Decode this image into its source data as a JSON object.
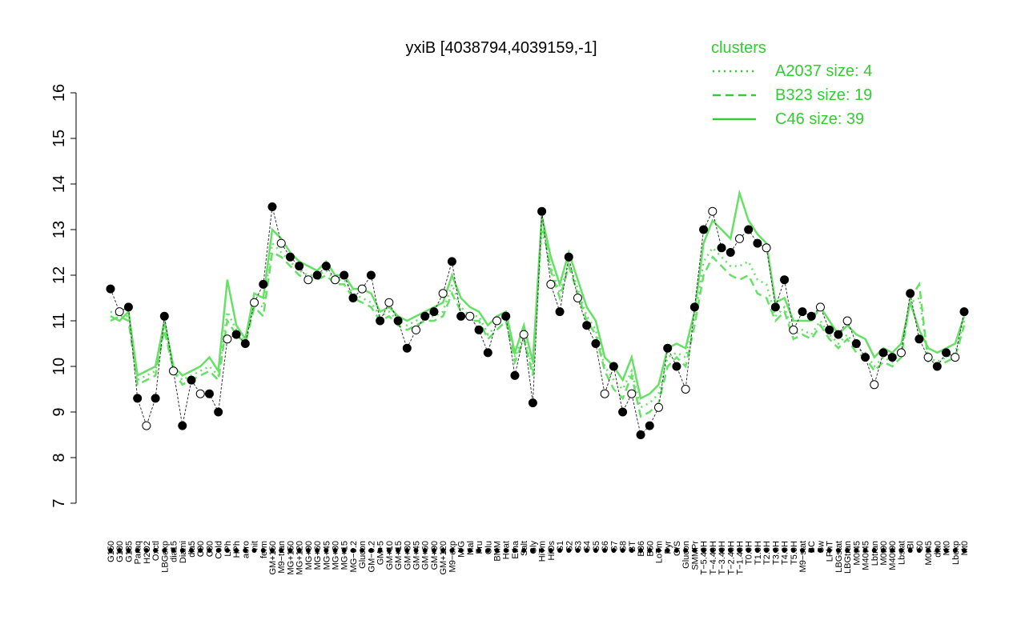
{
  "chart_data": {
    "type": "line",
    "title": "yxiB [4038794,4039159,-1]",
    "xlabel": "",
    "ylabel": "",
    "ylim": [
      7,
      16
    ],
    "yticks": [
      7,
      8,
      9,
      10,
      11,
      12,
      13,
      14,
      15,
      16
    ],
    "grid": false,
    "legend": {
      "title": "clusters",
      "placement": "top-right",
      "entries": [
        {
          "label": "A2037 size: 4",
          "style": "dotted"
        },
        {
          "label": "B323 size: 19",
          "style": "dashed"
        },
        {
          "label": "C46 size: 39",
          "style": "solid"
        }
      ]
    },
    "x_tick_labels": [
      "G150",
      "G180",
      "G135",
      "Paraq",
      "H2O2",
      "Oxctl",
      "LBGexp",
      "dia15",
      "Diami",
      "dia5",
      "C90",
      "C30",
      "Cold",
      "LPh",
      "HPh",
      "aero",
      "nit",
      "ferm",
      "GM+150",
      "M9−tran",
      "MG+150",
      "MG+120",
      "MG+90",
      "MG+60",
      "MG+45",
      "MG+30",
      "MG+15",
      "MG−0.2",
      "Glucon",
      "GM−0.2",
      "GM+5",
      "GM+10",
      "GM+15",
      "GM+30",
      "GM+45",
      "GM+60",
      "GM+90",
      "GM+120",
      "M9−exp",
      "M/G",
      "Mal",
      "Fru",
      "Glu",
      "BMM",
      "Heat",
      "Etha",
      "Salt",
      "Gly",
      "HiTm",
      "HiOs",
      "S1",
      "S2",
      "S3",
      "S4",
      "S5",
      "S6",
      "S7",
      "S8",
      "BT",
      "B36",
      "B60",
      "LoTm",
      "Pyr",
      "G/S",
      "Glucon",
      "SMMPr",
      "T−5.40H",
      "T−4.40H",
      "T−3.40H",
      "T−2.40H",
      "T−1.40H",
      "T0.0H",
      "T1.0H",
      "T2.0H",
      "T3.0H",
      "T4.0H",
      "T5.0H",
      "M9−stat",
      "BC",
      "Sw",
      "LPhT",
      "LBGstat",
      "LBGtran",
      "M0t45",
      "M40t45",
      "Lbtran",
      "M0t90",
      "M40t90",
      "Lbstat",
      "BI",
      "S0",
      "M0t45",
      "dia0",
      "Mt0",
      "Lbexp",
      "Mt0"
    ],
    "series": [
      {
        "style": "points-line",
        "color": "#000000",
        "x": [
          1,
          2,
          3,
          4,
          5,
          6,
          7,
          8,
          9,
          10,
          11,
          12,
          13,
          14,
          15,
          16,
          17,
          18,
          19,
          20,
          21,
          22,
          23,
          24,
          25,
          26,
          27,
          28,
          29,
          30,
          31,
          32,
          33,
          34,
          35,
          36,
          37,
          38,
          39,
          40,
          41,
          42,
          43,
          44,
          45,
          46,
          47,
          48,
          49,
          50,
          51,
          52,
          53,
          54,
          55,
          56,
          57,
          58,
          59,
          60,
          61,
          62,
          63,
          64,
          65,
          66,
          67,
          68,
          69,
          70,
          71,
          72,
          73,
          74,
          75,
          76,
          77,
          78,
          79,
          80,
          81,
          82,
          83,
          84,
          85,
          86,
          87,
          88,
          89,
          90,
          91,
          92,
          93,
          94,
          95,
          96
        ],
        "values": [
          11.7,
          11.2,
          11.3,
          9.3,
          8.7,
          9.3,
          11.1,
          9.9,
          8.7,
          9.7,
          9.4,
          9.4,
          9.0,
          10.6,
          10.7,
          10.5,
          11.4,
          11.8,
          13.5,
          12.7,
          12.4,
          12.2,
          11.9,
          12.0,
          12.2,
          11.9,
          12.0,
          11.5,
          11.7,
          12.0,
          11.0,
          11.4,
          11.0,
          10.4,
          10.8,
          11.1,
          11.2,
          11.6,
          12.3,
          11.1,
          11.1,
          10.8,
          10.3,
          11.0,
          11.1,
          9.8,
          10.7,
          9.2,
          13.4,
          11.8,
          11.2,
          12.4,
          11.5,
          10.9,
          10.5,
          9.4,
          10.0,
          9.0,
          9.4,
          8.5,
          8.7,
          9.1,
          10.4,
          10.0,
          9.5,
          11.3,
          13.0,
          13.4,
          12.6,
          12.5,
          12.8,
          13.0,
          12.7,
          12.6,
          11.3,
          11.9,
          10.8,
          11.2,
          11.1,
          11.3,
          10.8,
          10.7,
          11.0,
          10.5,
          10.2,
          9.6,
          10.3,
          10.2,
          10.3,
          11.6,
          10.6,
          10.2,
          10.0,
          10.3,
          10.2,
          11.2
        ]
      },
      {
        "name": "C46 size: 39",
        "style": "solid",
        "color": "#66e066",
        "x": [
          1,
          2,
          3,
          4,
          5,
          6,
          7,
          8,
          9,
          10,
          11,
          12,
          13,
          14,
          15,
          16,
          17,
          18,
          19,
          20,
          21,
          22,
          23,
          24,
          25,
          26,
          27,
          28,
          29,
          30,
          31,
          32,
          33,
          34,
          35,
          36,
          37,
          38,
          39,
          40,
          41,
          42,
          43,
          44,
          45,
          46,
          47,
          48,
          49,
          50,
          51,
          52,
          53,
          54,
          55,
          56,
          57,
          58,
          59,
          60,
          61,
          62,
          63,
          64,
          65,
          66,
          67,
          68,
          69,
          70,
          71,
          72,
          73,
          74,
          75,
          76,
          77,
          78,
          79,
          80,
          81,
          82,
          83,
          84,
          85,
          86,
          87,
          88,
          89,
          90,
          91,
          92,
          93,
          94,
          95,
          96
        ],
        "values": [
          11.1,
          11.0,
          11.2,
          9.8,
          9.9,
          10.0,
          11.0,
          10.0,
          9.8,
          9.9,
          10.0,
          10.2,
          9.9,
          11.9,
          10.9,
          10.6,
          11.6,
          11.5,
          13.0,
          12.8,
          12.5,
          12.3,
          12.2,
          12.1,
          12.3,
          12.0,
          12.0,
          11.7,
          11.7,
          11.6,
          11.2,
          11.3,
          11.1,
          11.0,
          11.1,
          11.2,
          11.3,
          11.4,
          12.0,
          11.5,
          11.3,
          11.2,
          10.9,
          11.1,
          11.2,
          10.3,
          10.9,
          10.1,
          13.3,
          12.4,
          11.8,
          12.5,
          11.9,
          11.3,
          11.0,
          10.2,
          10.0,
          9.7,
          10.2,
          9.3,
          9.4,
          9.6,
          10.4,
          10.5,
          10.4,
          11.2,
          12.7,
          13.2,
          13.0,
          12.8,
          13.8,
          13.2,
          12.9,
          12.7,
          11.4,
          11.5,
          11.0,
          11.0,
          11.0,
          11.3,
          11.0,
          10.7,
          10.9,
          10.7,
          10.6,
          10.2,
          10.4,
          10.3,
          10.5,
          11.4,
          10.8,
          10.4,
          10.3,
          10.4,
          10.5,
          11.1
        ]
      },
      {
        "name": "B323 size: 19",
        "style": "dashed",
        "color": "#66e066",
        "x": [
          1,
          2,
          3,
          4,
          5,
          6,
          7,
          8,
          9,
          10,
          11,
          12,
          13,
          14,
          15,
          16,
          17,
          18,
          19,
          20,
          21,
          22,
          23,
          24,
          25,
          26,
          27,
          28,
          29,
          30,
          31,
          32,
          33,
          34,
          35,
          36,
          37,
          38,
          39,
          40,
          41,
          42,
          43,
          44,
          45,
          46,
          47,
          48,
          49,
          50,
          51,
          52,
          53,
          54,
          55,
          56,
          57,
          58,
          59,
          60,
          61,
          62,
          63,
          64,
          65,
          66,
          67,
          68,
          69,
          70,
          71,
          72,
          73,
          74,
          75,
          76,
          77,
          78,
          79,
          80,
          81,
          82,
          83,
          84,
          85,
          86,
          87,
          88,
          89,
          90,
          91,
          92,
          93,
          94,
          95,
          96
        ],
        "values": [
          11.0,
          11.1,
          11.0,
          9.6,
          9.7,
          9.8,
          10.8,
          9.9,
          9.6,
          9.7,
          9.8,
          9.9,
          9.7,
          11.0,
          10.7,
          10.5,
          11.3,
          11.1,
          12.5,
          12.4,
          12.2,
          12.0,
          11.9,
          11.9,
          12.0,
          11.8,
          11.8,
          11.5,
          11.4,
          11.3,
          11.0,
          11.1,
          10.9,
          10.8,
          10.9,
          11.0,
          11.0,
          11.1,
          11.6,
          11.2,
          11.0,
          11.0,
          10.6,
          10.8,
          11.0,
          10.1,
          10.6,
          9.8,
          13.2,
          12.1,
          11.5,
          12.2,
          11.6,
          11.0,
          10.7,
          9.9,
          9.5,
          9.3,
          9.8,
          8.9,
          9.0,
          9.2,
          10.0,
          10.2,
          10.0,
          10.9,
          12.0,
          12.4,
          12.2,
          12.0,
          11.9,
          12.0,
          11.6,
          11.5,
          11.0,
          11.2,
          10.6,
          10.7,
          10.6,
          10.9,
          10.6,
          10.4,
          10.6,
          10.3,
          10.2,
          9.9,
          10.1,
          10.0,
          10.2,
          11.5,
          11.8,
          10.1,
          10.0,
          10.1,
          10.2,
          10.9
        ]
      },
      {
        "name": "A2037 size: 4",
        "style": "dotted",
        "color": "#66e066",
        "x": [
          1,
          2,
          3,
          4,
          5,
          6,
          7,
          8,
          9,
          10,
          11,
          12,
          13,
          14,
          15,
          16,
          17,
          18,
          19,
          20,
          21,
          22,
          23,
          24,
          25,
          26,
          27,
          28,
          29,
          30,
          31,
          32,
          33,
          34,
          35,
          36,
          37,
          38,
          39,
          40,
          41,
          42,
          43,
          44,
          45,
          46,
          47,
          48,
          49,
          50,
          51,
          52,
          53,
          54,
          55,
          56,
          57,
          58,
          59,
          60,
          61,
          62,
          63,
          64,
          65,
          66,
          67,
          68,
          69,
          70,
          71,
          72,
          73,
          74,
          75,
          76,
          77,
          78,
          79,
          80,
          81,
          82,
          83,
          84,
          85,
          86,
          87,
          88,
          89,
          90,
          91,
          92,
          93,
          94,
          95,
          96
        ],
        "values": [
          11.2,
          11.1,
          11.1,
          9.7,
          9.8,
          9.9,
          10.9,
          9.9,
          9.7,
          9.8,
          9.9,
          10.0,
          9.8,
          11.2,
          10.8,
          10.5,
          11.4,
          11.3,
          12.7,
          12.5,
          12.3,
          12.1,
          12.0,
          12.0,
          12.1,
          11.9,
          11.9,
          11.6,
          11.5,
          11.4,
          11.1,
          11.2,
          11.0,
          10.9,
          11.0,
          11.1,
          11.1,
          11.2,
          11.8,
          11.3,
          11.1,
          11.1,
          10.7,
          10.9,
          11.1,
          10.2,
          10.7,
          9.9,
          13.0,
          12.2,
          11.6,
          12.3,
          11.7,
          11.1,
          10.8,
          10.0,
          9.7,
          9.5,
          9.9,
          9.1,
          9.2,
          9.4,
          10.2,
          10.3,
          10.2,
          11.0,
          12.3,
          12.6,
          12.4,
          12.2,
          12.2,
          12.3,
          11.9,
          11.8,
          11.1,
          11.3,
          10.7,
          10.8,
          10.7,
          11.0,
          10.7,
          10.5,
          10.7,
          10.4,
          10.3,
          10.0,
          10.2,
          10.1,
          10.3,
          11.4,
          11.5,
          10.2,
          10.1,
          10.2,
          10.3,
          11.0
        ]
      }
    ]
  }
}
